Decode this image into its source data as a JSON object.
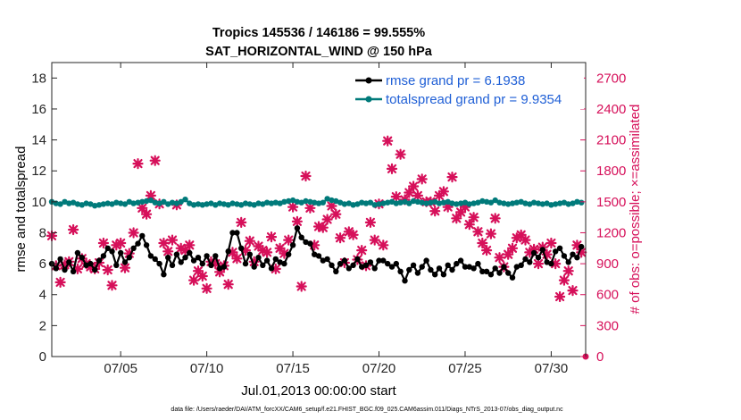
{
  "chart_data": {
    "type": "line",
    "title": "Tropics 145536 / 146186 = 99.555%",
    "subtitle": "SAT_HORIZONTAL_WIND @ 150 hPa",
    "xlabel": "Jul.01,2013 00:00:00 start",
    "ylabel": "rmse and totalspread",
    "y2label": "# of obs: o=possible; ×=assimilated",
    "footer": "data file: /Users/raeder/DAI/ATM_forcXX/CAM6_setup/f.e21.FHIST_BGC.f09_025.CAM6assim.011/Diags_NTrS_2013-07/obs_diag_output.nc",
    "xlim": [
      1,
      32
    ],
    "ylim": [
      0,
      19
    ],
    "y2lim": [
      0,
      2850
    ],
    "x_ticks": [
      5,
      10,
      15,
      20,
      25,
      30
    ],
    "x_tick_labels": [
      "07/05",
      "07/10",
      "07/15",
      "07/20",
      "07/25",
      "07/30"
    ],
    "y_ticks": [
      0,
      2,
      4,
      6,
      8,
      10,
      12,
      14,
      16,
      18
    ],
    "y_tick_labels": [
      "0",
      "2",
      "4",
      "6",
      "8",
      "10",
      "12",
      "14",
      "16",
      "18"
    ],
    "y2_ticks": [
      0,
      300,
      600,
      900,
      1200,
      1500,
      1800,
      2100,
      2400,
      2700
    ],
    "y2_tick_labels": [
      "0",
      "300",
      "600",
      "900",
      "1200",
      "1500",
      "1800",
      "2100",
      "2400",
      "2700"
    ],
    "grid": false,
    "legend_location": "top-right",
    "colors": {
      "rmse": "#000000",
      "spread": "#007a7a",
      "obs": "#d6105a",
      "legend_text": "#1f5fd6"
    },
    "series": [
      {
        "name": "rmse grand pr = 6.1938",
        "marker": "circle",
        "x": [
          1.0,
          1.25,
          1.5,
          1.75,
          2.0,
          2.25,
          2.5,
          2.75,
          3.0,
          3.25,
          3.5,
          3.75,
          4.0,
          4.25,
          4.5,
          4.75,
          5.0,
          5.25,
          5.5,
          5.75,
          6.0,
          6.25,
          6.5,
          6.75,
          7.0,
          7.25,
          7.5,
          7.75,
          8.0,
          8.25,
          8.5,
          8.75,
          9.0,
          9.25,
          9.5,
          9.75,
          10.0,
          10.25,
          10.5,
          10.75,
          11.0,
          11.25,
          11.5,
          11.75,
          12.0,
          12.25,
          12.5,
          12.75,
          13.0,
          13.25,
          13.5,
          13.75,
          14.0,
          14.25,
          14.5,
          14.75,
          15.0,
          15.25,
          15.5,
          15.75,
          16.0,
          16.25,
          16.5,
          16.75,
          17.0,
          17.25,
          17.5,
          17.75,
          18.0,
          18.25,
          18.5,
          18.75,
          19.0,
          19.25,
          19.5,
          19.75,
          20.0,
          20.25,
          20.5,
          20.75,
          21.0,
          21.25,
          21.5,
          21.75,
          22.0,
          22.25,
          22.5,
          22.75,
          23.0,
          23.25,
          23.5,
          23.75,
          24.0,
          24.25,
          24.5,
          24.75,
          25.0,
          25.25,
          25.5,
          25.75,
          26.0,
          26.25,
          26.5,
          26.75,
          27.0,
          27.25,
          27.5,
          27.75,
          28.0,
          28.25,
          28.5,
          28.75,
          29.0,
          29.25,
          29.5,
          29.75,
          30.0,
          30.25,
          30.5,
          30.75,
          31.0,
          31.25,
          31.5,
          31.75
        ],
        "values": [
          6.0,
          5.7,
          6.3,
          5.6,
          6.1,
          5.5,
          6.7,
          6.4,
          5.9,
          6.0,
          5.6,
          6.2,
          6.5,
          7.0,
          6.8,
          5.9,
          6.7,
          6.1,
          6.4,
          7.0,
          7.3,
          7.8,
          7.2,
          6.5,
          6.3,
          6.0,
          5.3,
          6.4,
          5.9,
          6.6,
          6.1,
          6.4,
          6.7,
          6.2,
          6.4,
          6.0,
          6.5,
          5.9,
          6.5,
          5.7,
          5.8,
          6.8,
          8.0,
          8.0,
          7.0,
          6.0,
          6.6,
          5.8,
          6.4,
          5.9,
          6.2,
          5.7,
          6.3,
          6.1,
          6.0,
          6.6,
          7.2,
          8.3,
          7.7,
          7.4,
          7.3,
          6.6,
          6.5,
          6.2,
          6.3,
          5.9,
          5.5,
          6.0,
          6.2,
          5.7,
          5.9,
          6.3,
          5.8,
          5.9,
          6.1,
          5.7,
          6.2,
          6.2,
          6.0,
          5.8,
          6.0,
          5.5,
          4.9,
          5.6,
          5.9,
          5.4,
          5.8,
          6.2,
          5.6,
          5.3,
          5.7,
          5.3,
          5.9,
          5.6,
          6.0,
          6.2,
          5.8,
          5.8,
          5.7,
          6.0,
          5.5,
          5.5,
          5.3,
          5.7,
          5.4,
          5.8,
          5.4,
          5.1,
          5.8,
          5.9,
          6.3,
          6.1,
          6.7,
          6.4,
          6.9,
          6.1,
          6.0,
          6.8,
          7.0,
          6.5,
          6.1,
          6.6,
          6.4,
          7.1
        ]
      },
      {
        "name": "totalspread grand pr = 9.9354",
        "marker": "circle",
        "x": [
          1.0,
          1.25,
          1.5,
          1.75,
          2.0,
          2.25,
          2.5,
          2.75,
          3.0,
          3.25,
          3.5,
          3.75,
          4.0,
          4.25,
          4.5,
          4.75,
          5.0,
          5.25,
          5.5,
          5.75,
          6.0,
          6.25,
          6.5,
          6.75,
          7.0,
          7.25,
          7.5,
          7.75,
          8.0,
          8.25,
          8.5,
          8.75,
          9.0,
          9.25,
          9.5,
          9.75,
          10.0,
          10.25,
          10.5,
          10.75,
          11.0,
          11.25,
          11.5,
          11.75,
          12.0,
          12.25,
          12.5,
          12.75,
          13.0,
          13.25,
          13.5,
          13.75,
          14.0,
          14.25,
          14.5,
          14.75,
          15.0,
          15.25,
          15.5,
          15.75,
          16.0,
          16.25,
          16.5,
          16.75,
          17.0,
          17.25,
          17.5,
          17.75,
          18.0,
          18.25,
          18.5,
          18.75,
          19.0,
          19.25,
          19.5,
          19.75,
          20.0,
          20.25,
          20.5,
          20.75,
          21.0,
          21.25,
          21.5,
          21.75,
          22.0,
          22.25,
          22.5,
          22.75,
          23.0,
          23.25,
          23.5,
          23.75,
          24.0,
          24.25,
          24.5,
          24.75,
          25.0,
          25.25,
          25.5,
          25.75,
          26.0,
          26.25,
          26.5,
          26.75,
          27.0,
          27.25,
          27.5,
          27.75,
          28.0,
          28.25,
          28.5,
          28.75,
          29.0,
          29.25,
          29.5,
          29.75,
          30.0,
          30.25,
          30.5,
          30.75,
          31.0,
          31.25,
          31.5,
          31.75
        ],
        "values": [
          10.0,
          9.9,
          9.85,
          10.0,
          9.9,
          9.95,
          9.85,
          9.8,
          9.9,
          9.85,
          9.75,
          9.8,
          9.85,
          9.9,
          9.85,
          9.95,
          9.9,
          9.85,
          10.0,
          9.9,
          9.95,
          10.0,
          10.05,
          10.1,
          9.95,
          9.9,
          10.0,
          9.85,
          9.95,
          9.9,
          10.0,
          10.15,
          9.9,
          9.8,
          9.85,
          9.8,
          9.85,
          9.9,
          9.8,
          9.9,
          9.85,
          9.8,
          9.9,
          9.85,
          9.8,
          9.9,
          9.85,
          9.8,
          9.9,
          9.85,
          9.95,
          9.9,
          9.95,
          9.9,
          10.0,
          10.05,
          10.1,
          10.0,
          9.95,
          10.05,
          10.0,
          9.95,
          9.9,
          9.95,
          10.2,
          10.1,
          10.05,
          9.95,
          9.85,
          9.9,
          9.8,
          9.85,
          9.95,
          9.9,
          9.95,
          9.8,
          9.85,
          9.9,
          9.95,
          10.0,
          9.9,
          9.95,
          10.0,
          9.9,
          10.05,
          10.0,
          9.95,
          9.9,
          9.95,
          10.0,
          9.9,
          9.95,
          10.0,
          9.9,
          9.85,
          9.9,
          9.95,
          9.85,
          9.9,
          9.95,
          10.05,
          10.0,
          9.95,
          10.1,
          9.95,
          9.9,
          9.85,
          9.9,
          9.95,
          10.0,
          9.9,
          9.85,
          9.95,
          9.9,
          9.85,
          9.9,
          9.8,
          9.85,
          9.9,
          9.95,
          9.85,
          9.9,
          10.0,
          9.95
        ]
      }
    ],
    "obs_series": {
      "name": "# of obs assimilated",
      "marker": "cross",
      "axis": "right",
      "x": [
        1.0,
        1.25,
        1.5,
        1.75,
        2.0,
        2.25,
        2.5,
        2.75,
        3.0,
        3.25,
        3.5,
        3.75,
        4.0,
        4.25,
        4.5,
        4.75,
        5.0,
        5.25,
        5.5,
        5.75,
        6.0,
        6.25,
        6.5,
        6.75,
        7.0,
        7.25,
        7.5,
        7.75,
        8.0,
        8.25,
        8.5,
        8.75,
        9.0,
        9.25,
        9.5,
        9.75,
        10.0,
        10.25,
        10.5,
        10.75,
        11.0,
        11.25,
        11.5,
        11.75,
        12.0,
        12.25,
        12.5,
        12.75,
        13.0,
        13.25,
        13.5,
        13.75,
        14.0,
        14.25,
        14.5,
        14.75,
        15.0,
        15.25,
        15.5,
        15.75,
        16.0,
        16.25,
        16.5,
        16.75,
        17.0,
        17.25,
        17.5,
        17.75,
        18.0,
        18.25,
        18.5,
        18.75,
        19.0,
        19.25,
        19.5,
        19.75,
        20.0,
        20.25,
        20.5,
        20.75,
        21.0,
        21.25,
        21.5,
        21.75,
        22.0,
        22.25,
        22.5,
        22.75,
        23.0,
        23.25,
        23.5,
        23.75,
        24.0,
        24.25,
        24.5,
        24.75,
        25.0,
        25.25,
        25.5,
        25.75,
        26.0,
        26.25,
        26.5,
        26.75,
        27.0,
        27.25,
        27.5,
        27.75,
        28.0,
        28.25,
        28.5,
        28.75,
        29.0,
        29.25,
        29.5,
        29.75,
        30.0,
        30.25,
        30.5,
        30.75,
        31.0,
        31.25,
        31.5,
        31.75
      ],
      "values": [
        1170,
        880,
        720,
        890,
        920,
        1230,
        850,
        950,
        900,
        870,
        850,
        910,
        1100,
        840,
        690,
        1080,
        1100,
        860,
        1000,
        1200,
        1870,
        1440,
        1380,
        1560,
        1900,
        1480,
        1100,
        1020,
        1130,
        1470,
        1050,
        1030,
        1080,
        740,
        830,
        780,
        660,
        920,
        900,
        820,
        880,
        700,
        1010,
        950,
        1300,
        1030,
        1120,
        920,
        1070,
        1030,
        1010,
        1160,
        850,
        1050,
        1000,
        1130,
        1450,
        1310,
        680,
        1750,
        1440,
        1080,
        1260,
        1250,
        1330,
        1460,
        1380,
        1150,
        910,
        1210,
        1180,
        940,
        1030,
        880,
        1300,
        1130,
        1480,
        1080,
        2090,
        1820,
        1550,
        1960,
        1520,
        1590,
        1650,
        1560,
        1720,
        1500,
        1500,
        1410,
        1560,
        1600,
        1450,
        1740,
        1340,
        1400,
        1450,
        1280,
        1350,
        1210,
        1100,
        1030,
        1190,
        1340,
        960,
        870,
        990,
        1050,
        1150,
        1180,
        1130,
        1010,
        1040,
        900,
        1060,
        990,
        1100,
        900,
        580,
        740,
        830,
        640,
        1080,
        1010
      ]
    }
  }
}
